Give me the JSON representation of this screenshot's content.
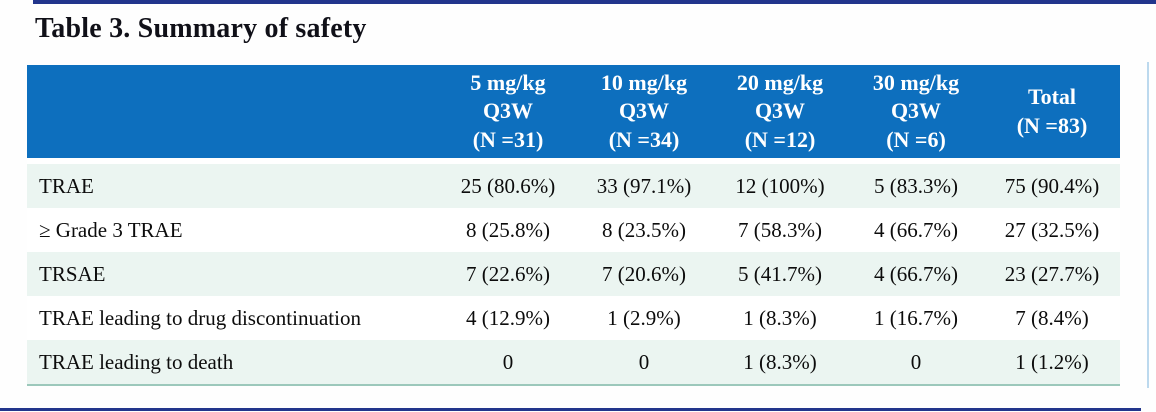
{
  "title": "Table 3. Summary of safety",
  "colors": {
    "header_bg": "#0d6fbe",
    "header_text": "#ffffff",
    "stripe_row_bg": "#ebf5f1",
    "table_bottom_rule": "#9cc8bb",
    "frame_rule_navy": "#22358c",
    "title_text": "#101018",
    "body_text": "#0c0c0c"
  },
  "table": {
    "columns": [
      {
        "lines": [
          "5 mg/kg",
          "Q3W",
          "(N =31)"
        ]
      },
      {
        "lines": [
          "10 mg/kg",
          "Q3W",
          "(N =34)"
        ]
      },
      {
        "lines": [
          "20 mg/kg",
          "Q3W",
          "(N =12)"
        ]
      },
      {
        "lines": [
          "30 mg/kg",
          "Q3W",
          "(N =6)"
        ]
      },
      {
        "lines": [
          "Total",
          "(N =83)"
        ]
      }
    ],
    "rows": [
      {
        "label": "TRAE",
        "values": [
          "25 (80.6%)",
          "33 (97.1%)",
          "12 (100%)",
          "5 (83.3%)",
          "75 (90.4%)"
        ]
      },
      {
        "label": "≥ Grade 3 TRAE",
        "values": [
          "8 (25.8%)",
          "8 (23.5%)",
          "7 (58.3%)",
          "4 (66.7%)",
          "27 (32.5%)"
        ]
      },
      {
        "label": "TRSAE",
        "values": [
          "7 (22.6%)",
          "7 (20.6%)",
          "5 (41.7%)",
          "4 (66.7%)",
          "23 (27.7%)"
        ]
      },
      {
        "label": "TRAE leading to drug discontinuation",
        "values": [
          "4 (12.9%)",
          "1 (2.9%)",
          "1 (8.3%)",
          "1 (16.7%)",
          "7 (8.4%)"
        ]
      },
      {
        "label": "TRAE leading to death",
        "values": [
          "0",
          "0",
          "1 (8.3%)",
          "0",
          "1 (1.2%)"
        ]
      }
    ]
  }
}
